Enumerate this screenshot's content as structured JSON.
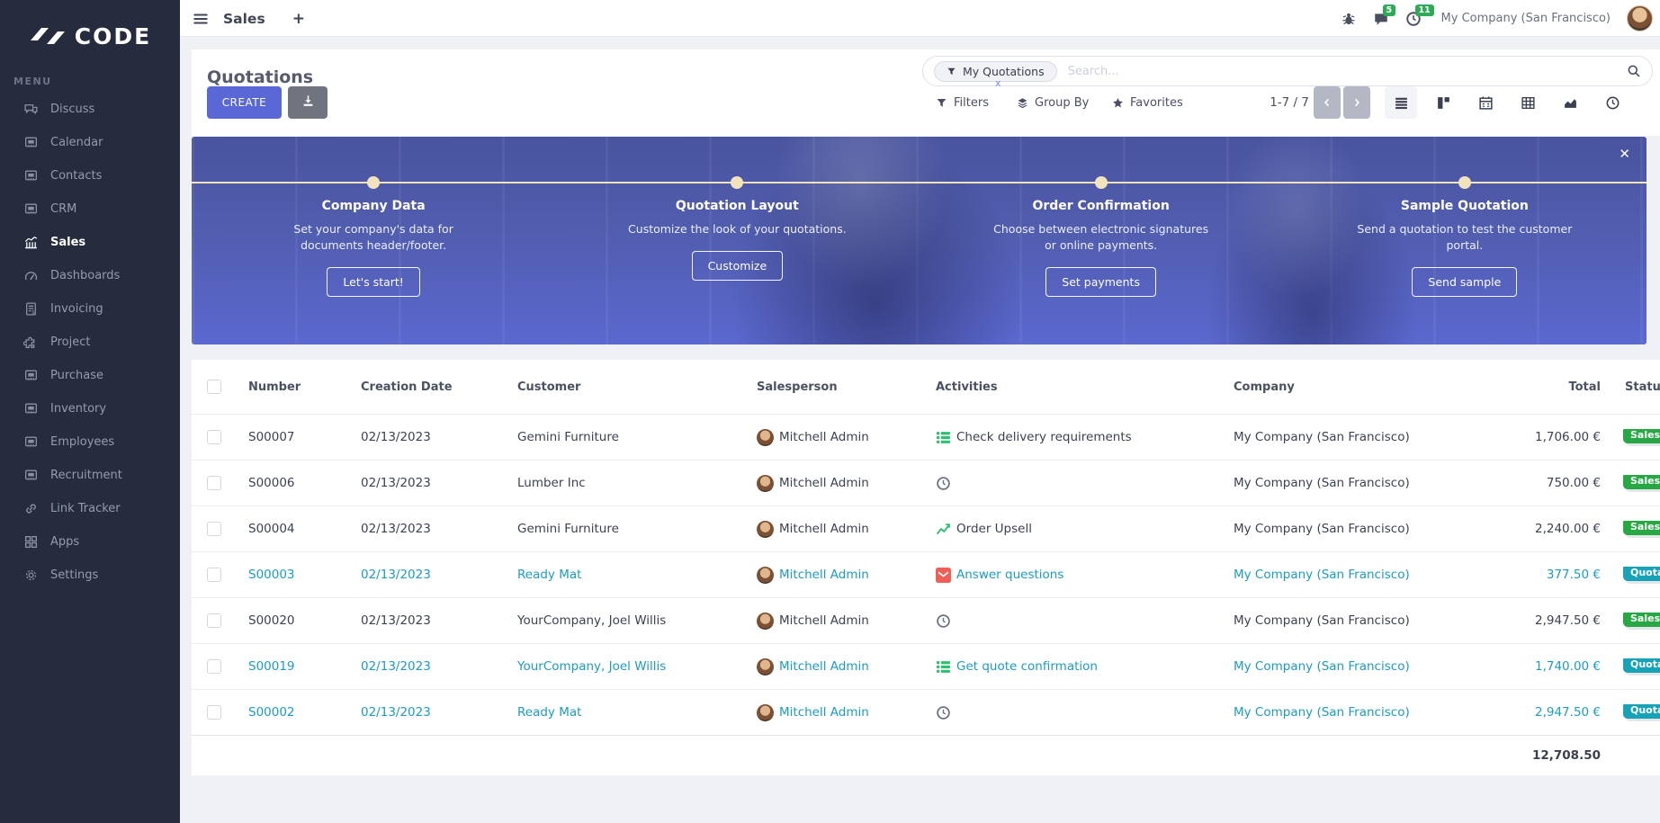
{
  "app": {
    "logo_text": "CODE",
    "menu_heading": "MENU"
  },
  "navbar": {
    "app_title": "Sales",
    "plus_label": "+",
    "company_switcher": "My Company (San Francisco)",
    "message_badge": "5",
    "activity_badge": "11"
  },
  "sidebar": {
    "items": [
      {
        "label": "Discuss",
        "icon": "discuss-icon",
        "active": false
      },
      {
        "label": "Calendar",
        "icon": "board-icon",
        "active": false
      },
      {
        "label": "Contacts",
        "icon": "board-icon",
        "active": false
      },
      {
        "label": "CRM",
        "icon": "board-icon",
        "active": false
      },
      {
        "label": "Sales",
        "icon": "sales-icon",
        "active": true
      },
      {
        "label": "Dashboards",
        "icon": "gauge-icon",
        "active": false
      },
      {
        "label": "Invoicing",
        "icon": "invoice-icon",
        "active": false
      },
      {
        "label": "Project",
        "icon": "puzzle-icon",
        "active": false
      },
      {
        "label": "Purchase",
        "icon": "board-icon",
        "active": false
      },
      {
        "label": "Inventory",
        "icon": "board-icon",
        "active": false
      },
      {
        "label": "Employees",
        "icon": "board-icon",
        "active": false
      },
      {
        "label": "Recruitment",
        "icon": "board-icon",
        "active": false
      },
      {
        "label": "Link Tracker",
        "icon": "link-icon",
        "active": false
      },
      {
        "label": "Apps",
        "icon": "apps-icon",
        "active": false
      },
      {
        "label": "Settings",
        "icon": "gear-icon",
        "active": false
      }
    ]
  },
  "control_panel": {
    "page_title": "Quotations",
    "create_button": "CREATE",
    "search": {
      "facet_label": "My Quotations",
      "facet_remove": "x",
      "placeholder": "Search..."
    },
    "filters_button": "Filters",
    "group_by_button": "Group By",
    "favorites_button": "Favorites",
    "pager": "1-7 / 7"
  },
  "banner": {
    "close_label": "✕",
    "steps": [
      {
        "title": "Company Data",
        "description": "Set your company's data for documents header/footer.",
        "button": "Let's start!"
      },
      {
        "title": "Quotation Layout",
        "description": "Customize the look of your quotations.",
        "button": "Customize"
      },
      {
        "title": "Order Confirmation",
        "description": "Choose between electronic signatures or online payments.",
        "button": "Set payments"
      },
      {
        "title": "Sample Quotation",
        "description": "Send a quotation to test the customer portal.",
        "button": "Send sample"
      }
    ]
  },
  "table": {
    "headers": {
      "number": "Number",
      "creation_date": "Creation Date",
      "customer": "Customer",
      "salesperson": "Salesperson",
      "activities": "Activities",
      "company": "Company",
      "total": "Total",
      "status": "Status"
    },
    "rows": [
      {
        "number": "S00007",
        "creation_date": "02/13/2023",
        "customer": "Gemini Furniture",
        "salesperson": "Mitchell Admin",
        "activity_icon": "list-check-icon",
        "activity_label": "Check delivery requirements",
        "company": "My Company (San Francisco)",
        "total": "1,706.00 €",
        "status_label": "Sales Order",
        "status_variant": "green",
        "highlighted": false
      },
      {
        "number": "S00006",
        "creation_date": "02/13/2023",
        "customer": "Lumber Inc",
        "salesperson": "Mitchell Admin",
        "activity_icon": "clock-icon",
        "activity_label": "",
        "company": "My Company (San Francisco)",
        "total": "750.00 €",
        "status_label": "Sales Order",
        "status_variant": "green",
        "highlighted": false
      },
      {
        "number": "S00004",
        "creation_date": "02/13/2023",
        "customer": "Gemini Furniture",
        "salesperson": "Mitchell Admin",
        "activity_icon": "chart-icon",
        "activity_label": "Order Upsell",
        "company": "My Company (San Francisco)",
        "total": "2,240.00 €",
        "status_label": "Sales Order",
        "status_variant": "green",
        "highlighted": false
      },
      {
        "number": "S00003",
        "creation_date": "02/13/2023",
        "customer": "Ready Mat",
        "salesperson": "Mitchell Admin",
        "activity_icon": "envelope-icon",
        "activity_label": "Answer questions",
        "company": "My Company (San Francisco)",
        "total": "377.50 €",
        "status_label": "Quotation",
        "status_variant": "teal",
        "highlighted": true
      },
      {
        "number": "S00020",
        "creation_date": "02/13/2023",
        "customer": "YourCompany, Joel Willis",
        "salesperson": "Mitchell Admin",
        "activity_icon": "clock-icon",
        "activity_label": "",
        "company": "My Company (San Francisco)",
        "total": "2,947.50 €",
        "status_label": "Sales Order",
        "status_variant": "green",
        "highlighted": false
      },
      {
        "number": "S00019",
        "creation_date": "02/13/2023",
        "customer": "YourCompany, Joel Willis",
        "salesperson": "Mitchell Admin",
        "activity_icon": "list-check-icon",
        "activity_label": "Get quote confirmation",
        "company": "My Company (San Francisco)",
        "total": "1,740.00 €",
        "status_label": "Quotation",
        "status_variant": "teal",
        "highlighted": true
      },
      {
        "number": "S00002",
        "creation_date": "02/13/2023",
        "customer": "Ready Mat",
        "salesperson": "Mitchell Admin",
        "activity_icon": "clock-icon",
        "activity_label": "",
        "company": "My Company (San Francisco)",
        "total": "2,947.50 €",
        "status_label": "Quotation",
        "status_variant": "teal",
        "highlighted": true
      }
    ],
    "footer_total": "12,708.50"
  },
  "colors": {
    "accent": "#5a68d5",
    "link": "#1b9cc4",
    "badge_green": "#28a745",
    "badge_teal": "#17a2b8",
    "sidebar_bg": "#272b3e",
    "banner_line": "#f2e2be",
    "activity_green": "#2fbf71",
    "activity_red": "#ef5f58",
    "activity_gray": "#6d7180",
    "navbar_badge_green": "#2eab57"
  }
}
